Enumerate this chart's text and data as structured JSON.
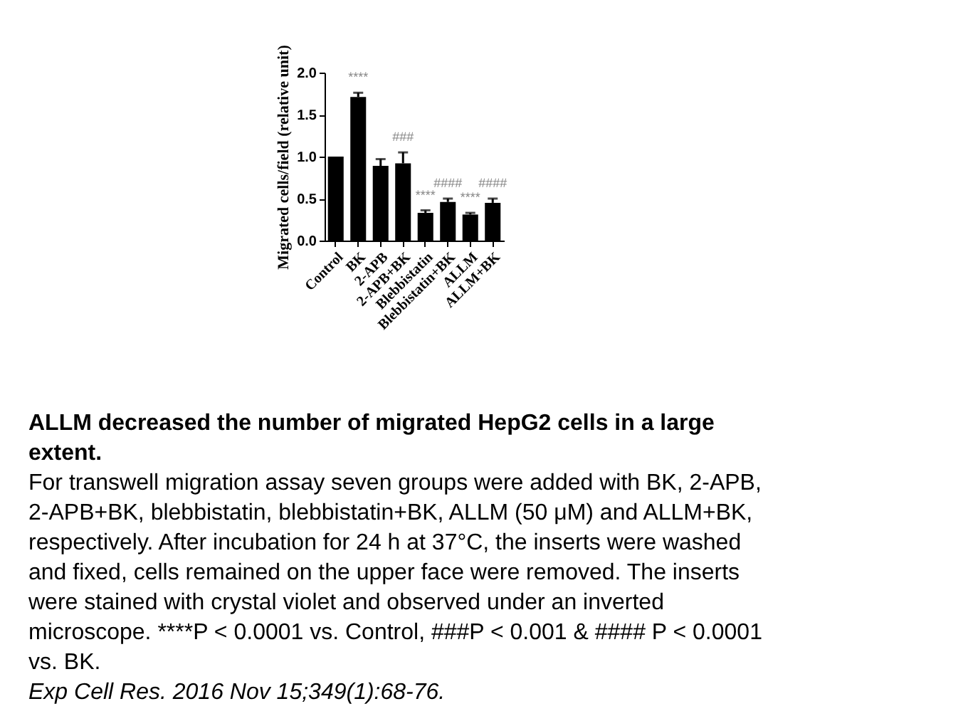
{
  "chart_data": {
    "type": "bar",
    "ylabel": "Migrated cells/field (relative unit)",
    "categories": [
      "Control",
      "BK",
      "2-APB",
      "2-APB+BK",
      "Blebbistatin",
      "Blebbistatin+BK",
      "ALLM",
      "ALLM+BK"
    ],
    "values": [
      1.0,
      1.71,
      0.89,
      0.92,
      0.33,
      0.46,
      0.31,
      0.45
    ],
    "errors": [
      null,
      [
        1.71,
        1.76
      ],
      [
        0.89,
        0.97
      ],
      [
        0.92,
        1.05
      ],
      [
        0.33,
        0.36
      ],
      [
        0.46,
        0.5
      ],
      [
        0.31,
        0.33
      ],
      [
        0.45,
        0.5
      ]
    ],
    "color": "#000000",
    "ylim": [
      0,
      2.0
    ],
    "yticks": [
      {
        "value": 0,
        "label": "0.0"
      },
      {
        "value": 0.5,
        "label": "0.5"
      },
      {
        "value": 1.0,
        "label": "1.0"
      },
      {
        "value": 1.5,
        "label": "1.5"
      },
      {
        "value": 2.0,
        "label": "2.0"
      }
    ],
    "grid": false,
    "annotations": [
      {
        "text": "****",
        "x": "BK",
        "y": 1.76
      },
      {
        "text": "###",
        "x": "2-APB+BK",
        "y": 1.05
      },
      {
        "text": "****",
        "x": "Blebbistatin",
        "y": 0.36
      },
      {
        "text": "####",
        "x": "Blebbistatin+BK",
        "y": 0.5
      },
      {
        "text": "****",
        "x": "ALLM",
        "y": 0.33
      },
      {
        "text": "####",
        "x": "ALLM+BK",
        "y": 0.5
      },
      "ALLM decreased the number of migrated HepG2 cells in a large extent.",
      "For transwell migration assay seven groups were added with BK, 2-APB, 2-APB+BK, blebbistatin, blebbistatin+BK, ALLM (50 μM) and ALLM+BK, respectively. After incubation for 24 h at 37°C, the inserts were washed and fixed, cells remained on the upper face were removed. The inserts were stained with crystal violet and observed under an inverted microscope. ****P < 0.0001 vs. Control, ###P < 0.001 & #### P < 0.0001 vs. BK.",
      "Exp Cell Res. 2016 Nov 15;349(1):68-76."
    ]
  }
}
